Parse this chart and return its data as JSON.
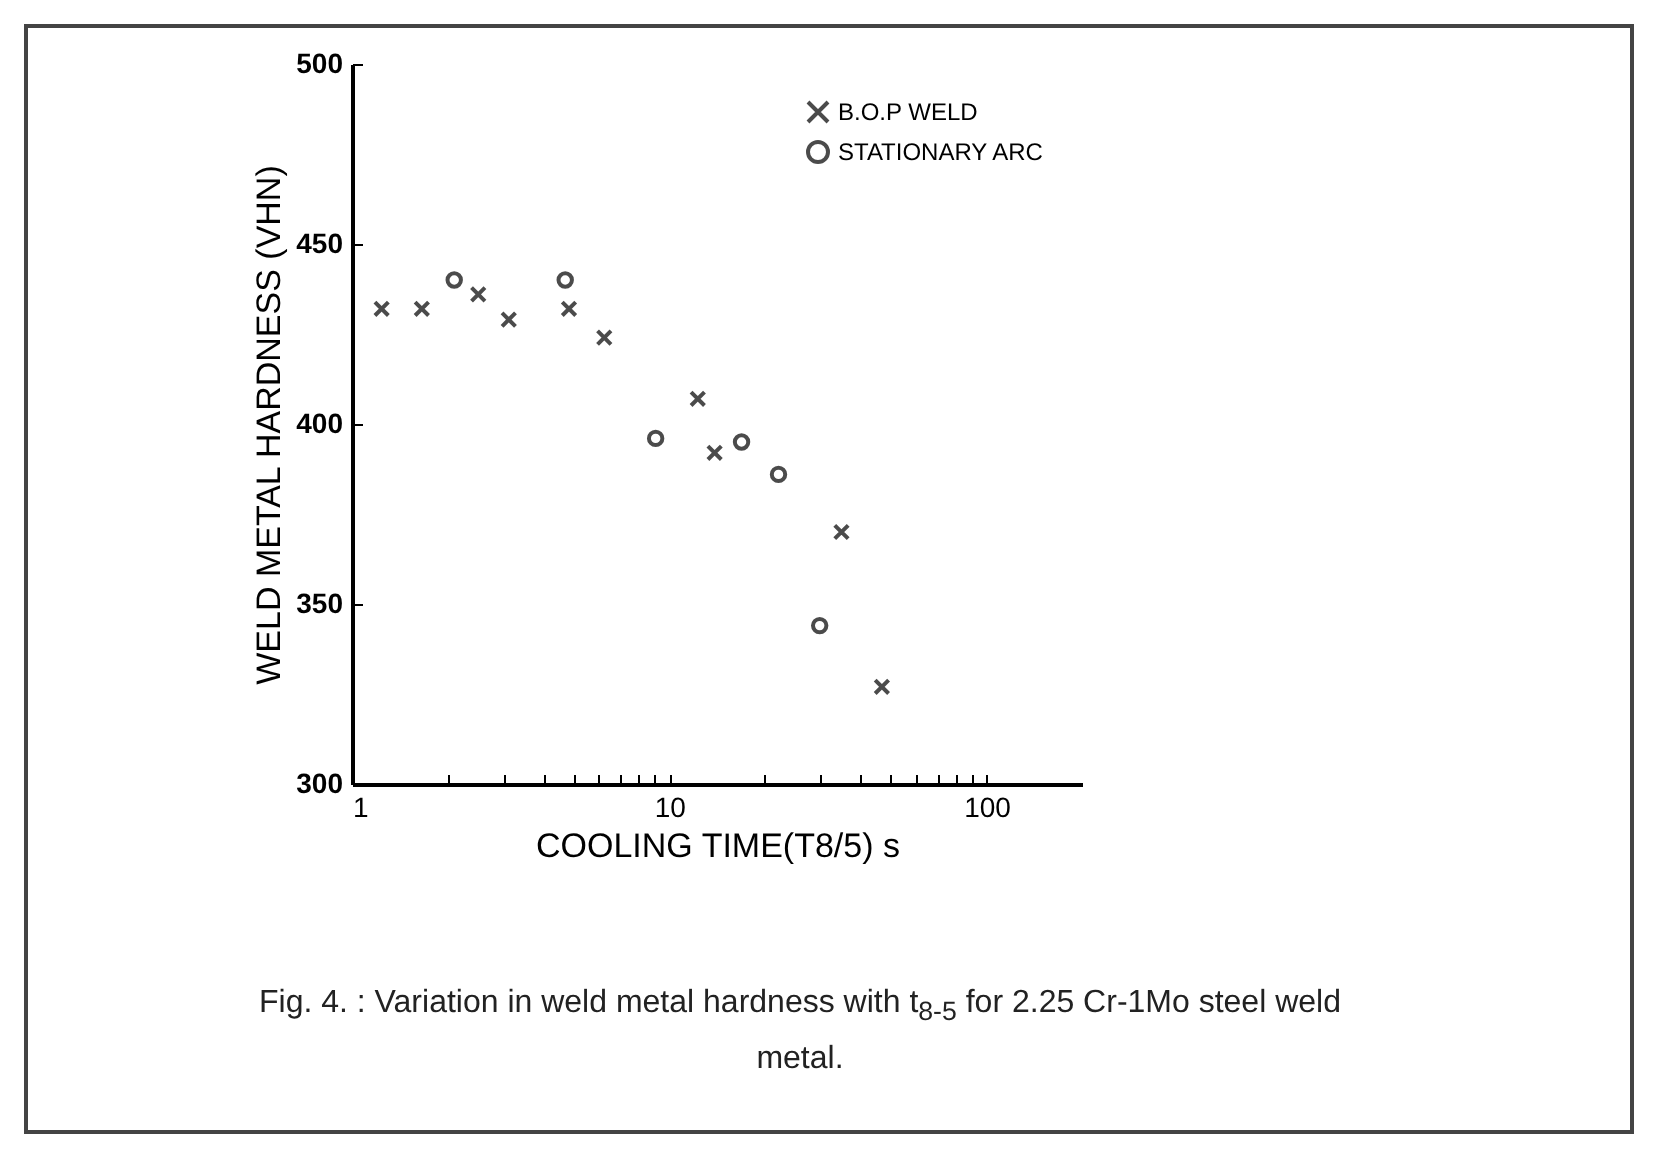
{
  "chart_data": {
    "type": "scatter",
    "xlabel": "COOLING TIME(T8/5) s",
    "ylabel": "WELD METAL HARDNESS (VHN)",
    "annotations": [
      "Fig. 4. : Variation in weld metal hardness with t$_{8-5}$ for 2.25 Cr-1Mo steel weld metal."
    ],
    "series": [
      {
        "name": "B.O.P WELD",
        "color": "#000000",
        "marker": "cross",
        "x": [
          1.24,
          1.66,
          2.5,
          3.12,
          4.83,
          6.24,
          12.3,
          13.9,
          34.9,
          46.8
        ],
        "values": [
          432,
          432,
          436,
          429,
          432,
          424,
          407,
          392,
          370,
          327
        ]
      },
      {
        "name": "STATIONARY ARC",
        "color": "#000000",
        "marker": "circle",
        "x": [
          2.1,
          4.7,
          9.06,
          16.9,
          22.1,
          29.8
        ],
        "values": [
          440,
          440,
          396,
          395,
          386,
          344
        ]
      }
    ],
    "log": "x",
    "xlim": [
      1,
      200
    ],
    "ylim": [
      300,
      500
    ],
    "xticks": [
      1,
      {
        "value": 2,
        "label": null
      },
      {
        "value": 3,
        "label": null
      },
      {
        "value": 4,
        "label": null
      },
      {
        "value": 5,
        "label": null
      },
      {
        "value": 6,
        "label": null
      },
      {
        "value": 7,
        "label": null
      },
      {
        "value": 8,
        "label": null
      },
      {
        "value": 9,
        "label": null
      },
      10,
      {
        "value": 20,
        "label": null
      },
      {
        "value": 30,
        "label": null
      },
      {
        "value": 40,
        "label": null
      },
      {
        "value": 50,
        "label": null
      },
      {
        "value": 60,
        "label": null
      },
      {
        "value": 70,
        "label": null
      },
      {
        "value": 80,
        "label": null
      },
      {
        "value": 90,
        "label": null
      },
      100
    ],
    "yticks": [
      300,
      350,
      400,
      450,
      500
    ],
    "grid": false,
    "legend": "top right"
  }
}
